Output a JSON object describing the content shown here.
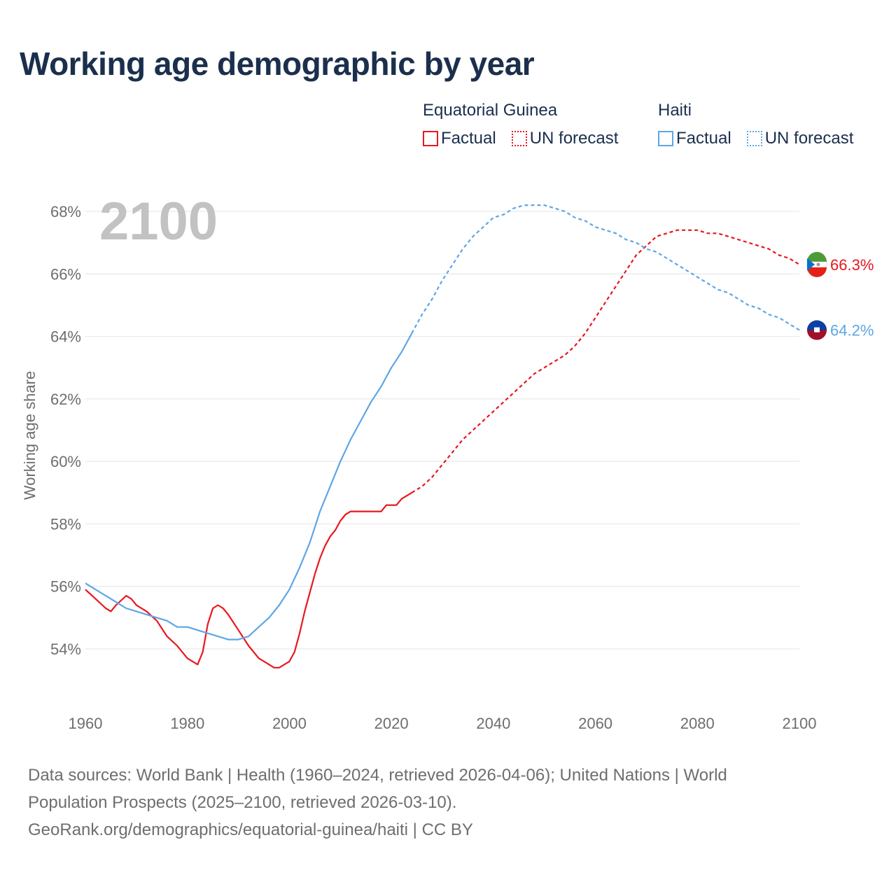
{
  "title": "Working age demographic by year",
  "legend": {
    "groups": [
      {
        "name": "Equatorial Guinea",
        "color": "#e8171f",
        "factual_label": "Factual",
        "forecast_label": "UN forecast"
      },
      {
        "name": "Haiti",
        "color": "#5ea6e5",
        "factual_label": "Factual",
        "forecast_label": "UN forecast"
      }
    ]
  },
  "year_label": "2100",
  "sources": {
    "line1": "Data sources: World Bank | Health (1960–2024, retrieved 2026-04-06); United Nations | World",
    "line2": "Population Prospects (2025–2100, retrieved 2026-03-10).",
    "line3": "GeoRank.org/demographics/equatorial-guinea/haiti | CC BY"
  },
  "chart_data": {
    "type": "line",
    "title": "Working age demographic by year",
    "xlabel": "",
    "ylabel": "Working age share",
    "xlim": [
      1960,
      2100
    ],
    "ylim": [
      53,
      68.4
    ],
    "x_ticks": [
      1960,
      1980,
      2000,
      2020,
      2040,
      2060,
      2080,
      2100
    ],
    "x_tick_labels": [
      "1960",
      "1980",
      "2000",
      "2020",
      "2040",
      "2060",
      "2080",
      "2100"
    ],
    "y_ticks": [
      54,
      56,
      58,
      60,
      62,
      64,
      66,
      68
    ],
    "y_tick_labels": [
      "54%",
      "56%",
      "58%",
      "60%",
      "62%",
      "64%",
      "66%",
      "68%"
    ],
    "grid": true,
    "factual_end_year": 2024,
    "series": [
      {
        "name": "Equatorial Guinea",
        "color": "#e8171f",
        "end_label": "66.3%",
        "points": [
          [
            1960,
            55.9
          ],
          [
            1962,
            55.6
          ],
          [
            1964,
            55.3
          ],
          [
            1965,
            55.2
          ],
          [
            1966,
            55.4
          ],
          [
            1968,
            55.7
          ],
          [
            1969,
            55.6
          ],
          [
            1970,
            55.4
          ],
          [
            1972,
            55.2
          ],
          [
            1974,
            54.9
          ],
          [
            1976,
            54.4
          ],
          [
            1978,
            54.1
          ],
          [
            1980,
            53.7
          ],
          [
            1982,
            53.5
          ],
          [
            1983,
            53.9
          ],
          [
            1984,
            54.8
          ],
          [
            1985,
            55.3
          ],
          [
            1986,
            55.4
          ],
          [
            1987,
            55.3
          ],
          [
            1988,
            55.1
          ],
          [
            1990,
            54.6
          ],
          [
            1992,
            54.1
          ],
          [
            1994,
            53.7
          ],
          [
            1996,
            53.5
          ],
          [
            1997,
            53.4
          ],
          [
            1998,
            53.4
          ],
          [
            2000,
            53.6
          ],
          [
            2001,
            53.9
          ],
          [
            2002,
            54.5
          ],
          [
            2003,
            55.2
          ],
          [
            2004,
            55.8
          ],
          [
            2005,
            56.4
          ],
          [
            2006,
            56.9
          ],
          [
            2007,
            57.3
          ],
          [
            2008,
            57.6
          ],
          [
            2009,
            57.8
          ],
          [
            2010,
            58.1
          ],
          [
            2011,
            58.3
          ],
          [
            2012,
            58.4
          ],
          [
            2014,
            58.4
          ],
          [
            2016,
            58.4
          ],
          [
            2018,
            58.4
          ],
          [
            2019,
            58.6
          ],
          [
            2021,
            58.6
          ],
          [
            2022,
            58.8
          ],
          [
            2024,
            59.0
          ],
          [
            2026,
            59.2
          ],
          [
            2028,
            59.5
          ],
          [
            2030,
            59.9
          ],
          [
            2032,
            60.3
          ],
          [
            2034,
            60.7
          ],
          [
            2036,
            61.0
          ],
          [
            2038,
            61.3
          ],
          [
            2040,
            61.6
          ],
          [
            2042,
            61.9
          ],
          [
            2044,
            62.2
          ],
          [
            2046,
            62.5
          ],
          [
            2048,
            62.8
          ],
          [
            2050,
            63.0
          ],
          [
            2052,
            63.2
          ],
          [
            2054,
            63.4
          ],
          [
            2056,
            63.7
          ],
          [
            2058,
            64.1
          ],
          [
            2060,
            64.6
          ],
          [
            2062,
            65.1
          ],
          [
            2064,
            65.6
          ],
          [
            2066,
            66.1
          ],
          [
            2068,
            66.6
          ],
          [
            2070,
            66.9
          ],
          [
            2072,
            67.2
          ],
          [
            2074,
            67.3
          ],
          [
            2076,
            67.4
          ],
          [
            2080,
            67.4
          ],
          [
            2082,
            67.3
          ],
          [
            2084,
            67.3
          ],
          [
            2086,
            67.2
          ],
          [
            2088,
            67.1
          ],
          [
            2090,
            67.0
          ],
          [
            2092,
            66.9
          ],
          [
            2094,
            66.8
          ],
          [
            2096,
            66.6
          ],
          [
            2098,
            66.5
          ],
          [
            2100,
            66.3
          ]
        ]
      },
      {
        "name": "Haiti",
        "color": "#5ea6e5",
        "end_label": "64.2%",
        "points": [
          [
            1960,
            56.1
          ],
          [
            1962,
            55.9
          ],
          [
            1964,
            55.7
          ],
          [
            1966,
            55.5
          ],
          [
            1968,
            55.3
          ],
          [
            1970,
            55.2
          ],
          [
            1972,
            55.1
          ],
          [
            1974,
            55.0
          ],
          [
            1976,
            54.9
          ],
          [
            1978,
            54.7
          ],
          [
            1980,
            54.7
          ],
          [
            1982,
            54.6
          ],
          [
            1984,
            54.5
          ],
          [
            1986,
            54.4
          ],
          [
            1988,
            54.3
          ],
          [
            1990,
            54.3
          ],
          [
            1992,
            54.4
          ],
          [
            1994,
            54.7
          ],
          [
            1996,
            55.0
          ],
          [
            1998,
            55.4
          ],
          [
            2000,
            55.9
          ],
          [
            2002,
            56.6
          ],
          [
            2004,
            57.4
          ],
          [
            2006,
            58.4
          ],
          [
            2008,
            59.2
          ],
          [
            2010,
            60.0
          ],
          [
            2012,
            60.7
          ],
          [
            2014,
            61.3
          ],
          [
            2016,
            61.9
          ],
          [
            2018,
            62.4
          ],
          [
            2020,
            63.0
          ],
          [
            2022,
            63.5
          ],
          [
            2024,
            64.1
          ],
          [
            2026,
            64.7
          ],
          [
            2028,
            65.2
          ],
          [
            2030,
            65.8
          ],
          [
            2032,
            66.3
          ],
          [
            2034,
            66.8
          ],
          [
            2036,
            67.2
          ],
          [
            2038,
            67.5
          ],
          [
            2040,
            67.8
          ],
          [
            2042,
            67.9
          ],
          [
            2044,
            68.1
          ],
          [
            2046,
            68.2
          ],
          [
            2050,
            68.2
          ],
          [
            2052,
            68.1
          ],
          [
            2054,
            68.0
          ],
          [
            2056,
            67.8
          ],
          [
            2058,
            67.7
          ],
          [
            2060,
            67.5
          ],
          [
            2062,
            67.4
          ],
          [
            2064,
            67.3
          ],
          [
            2066,
            67.1
          ],
          [
            2068,
            67.0
          ],
          [
            2070,
            66.8
          ],
          [
            2072,
            66.7
          ],
          [
            2074,
            66.5
          ],
          [
            2076,
            66.3
          ],
          [
            2078,
            66.1
          ],
          [
            2080,
            65.9
          ],
          [
            2082,
            65.7
          ],
          [
            2084,
            65.5
          ],
          [
            2086,
            65.4
          ],
          [
            2088,
            65.2
          ],
          [
            2090,
            65.0
          ],
          [
            2092,
            64.9
          ],
          [
            2094,
            64.7
          ],
          [
            2096,
            64.6
          ],
          [
            2098,
            64.4
          ],
          [
            2100,
            64.2
          ]
        ]
      }
    ]
  }
}
